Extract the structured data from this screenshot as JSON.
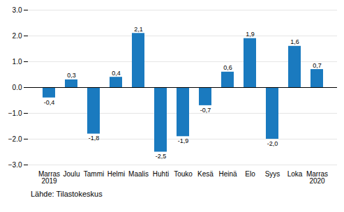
{
  "chart_data": {
    "type": "bar",
    "categories": [
      "Marras\n2019",
      "Joulu",
      "Tammi",
      "Helmi",
      "Maalis",
      "Huhti",
      "Touko",
      "Kesä",
      "Heinä",
      "Elo",
      "Syys",
      "Loka",
      "Marras\n2020"
    ],
    "values": [
      -0.4,
      0.3,
      -1.8,
      0.4,
      2.1,
      -2.5,
      -1.9,
      -0.7,
      0.6,
      1.9,
      -2.0,
      1.6,
      0.7
    ],
    "value_labels": [
      "-0,4",
      "0,3",
      "-1,8",
      "0,4",
      "2,1",
      "-2,5",
      "-1,9",
      "-0,7",
      "0,6",
      "1,9",
      "-2,0",
      "1,6",
      "0,7"
    ],
    "color": "#1a7abf",
    "ylim": [
      -3,
      3
    ],
    "yticks": [
      -3,
      -2,
      -1,
      0,
      1,
      2,
      3
    ],
    "grid": true,
    "data_labels": true,
    "caption": "Lähde: Tilastokeskus"
  }
}
